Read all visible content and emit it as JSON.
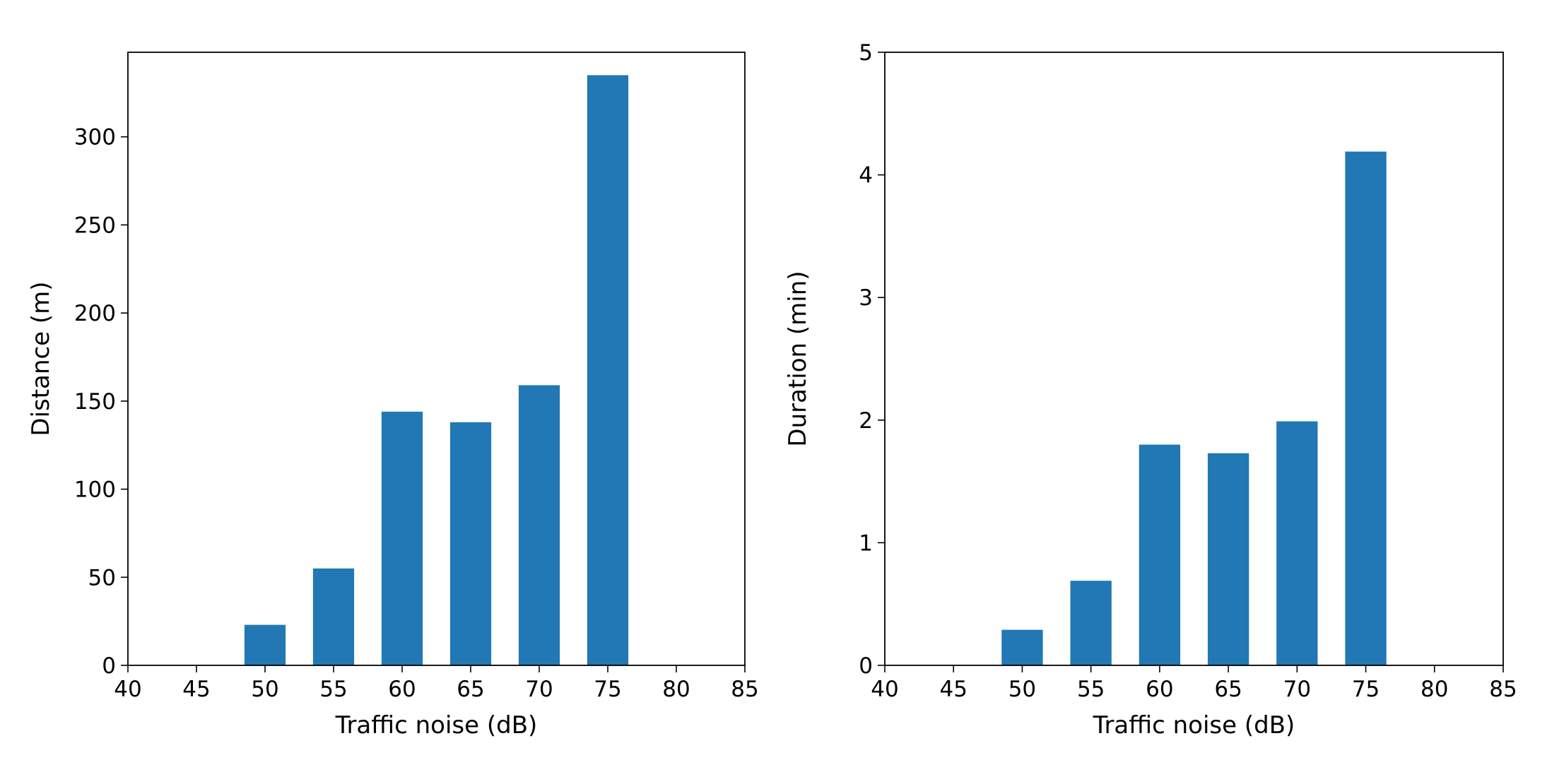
{
  "colors": {
    "bar": "#2178b4",
    "axis": "#000000",
    "background": "#ffffff"
  },
  "chart_data": [
    {
      "type": "bar",
      "title": "",
      "xlabel": "Traffic noise (dB)",
      "ylabel": "Distance (m)",
      "xlim": [
        40,
        85
      ],
      "ylim": [
        0,
        348
      ],
      "xticks": [
        40,
        45,
        50,
        55,
        60,
        65,
        70,
        75,
        80,
        85
      ],
      "yticks": [
        0,
        50,
        100,
        150,
        200,
        250,
        300
      ],
      "bar_width": 3,
      "x": [
        50,
        55,
        60,
        65,
        70,
        75
      ],
      "values": [
        23,
        55,
        144,
        138,
        159,
        335
      ],
      "grid": false,
      "legend": "none"
    },
    {
      "type": "bar",
      "title": "",
      "xlabel": "Traffic noise (dB)",
      "ylabel": "Duration (min)",
      "xlim": [
        40,
        85
      ],
      "ylim": [
        0,
        5
      ],
      "xticks": [
        40,
        45,
        50,
        55,
        60,
        65,
        70,
        75,
        80,
        85
      ],
      "yticks": [
        0,
        1,
        2,
        3,
        4,
        5
      ],
      "bar_width": 3,
      "x": [
        50,
        55,
        60,
        65,
        70,
        75
      ],
      "values": [
        0.29,
        0.69,
        1.8,
        1.73,
        1.99,
        4.19
      ],
      "grid": false,
      "legend": "none"
    }
  ]
}
